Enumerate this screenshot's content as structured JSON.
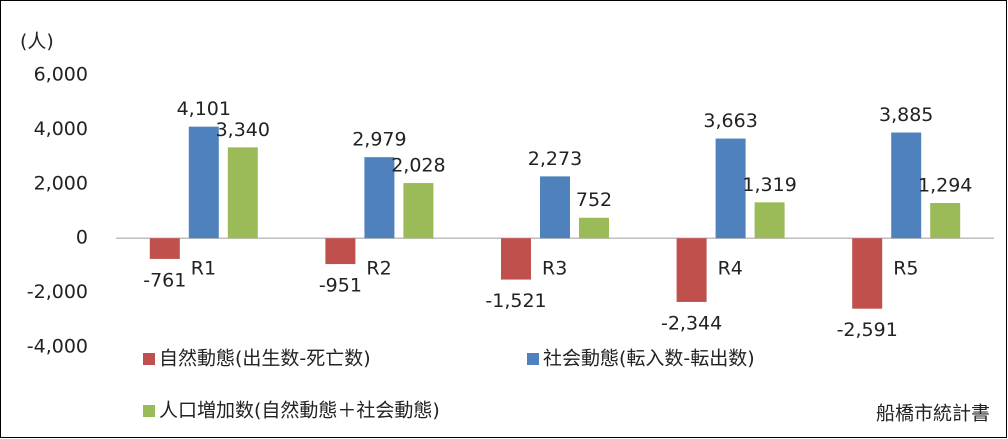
{
  "chart_data": {
    "type": "bar",
    "unit_label": "(人)",
    "categories": [
      "R1",
      "R2",
      "R3",
      "R4",
      "R5"
    ],
    "series": [
      {
        "name": "自然動態(出生数-死亡数)",
        "color": "#c0504d",
        "values": [
          -761,
          -951,
          -1521,
          -2344,
          -2591
        ],
        "value_labels": [
          "-761",
          "-951",
          "-1,521",
          "-2,344",
          "-2,591"
        ]
      },
      {
        "name": "社会動態(転入数-転出数)",
        "color": "#4f81bd",
        "values": [
          4101,
          2979,
          2273,
          3663,
          3885
        ],
        "value_labels": [
          "4,101",
          "2,979",
          "2,273",
          "3,663",
          "3,885"
        ]
      },
      {
        "name": "人口増加数(自然動態＋社会動態)",
        "color": "#9bbb59",
        "values": [
          3340,
          2028,
          752,
          1319,
          1294
        ],
        "value_labels": [
          "3,340",
          "2,028",
          "752",
          "1,319",
          "1,294"
        ]
      }
    ],
    "ylim": [
      -4000,
      6000
    ],
    "yticks": [
      {
        "value": -4000,
        "label": "-4,000"
      },
      {
        "value": -2000,
        "label": "-2,000"
      },
      0,
      {
        "value": 2000,
        "label": "2,000"
      },
      {
        "value": 4000,
        "label": "4,000"
      },
      {
        "value": 6000,
        "label": "6,000"
      }
    ],
    "grid": false,
    "source": "船橋市統計書"
  }
}
